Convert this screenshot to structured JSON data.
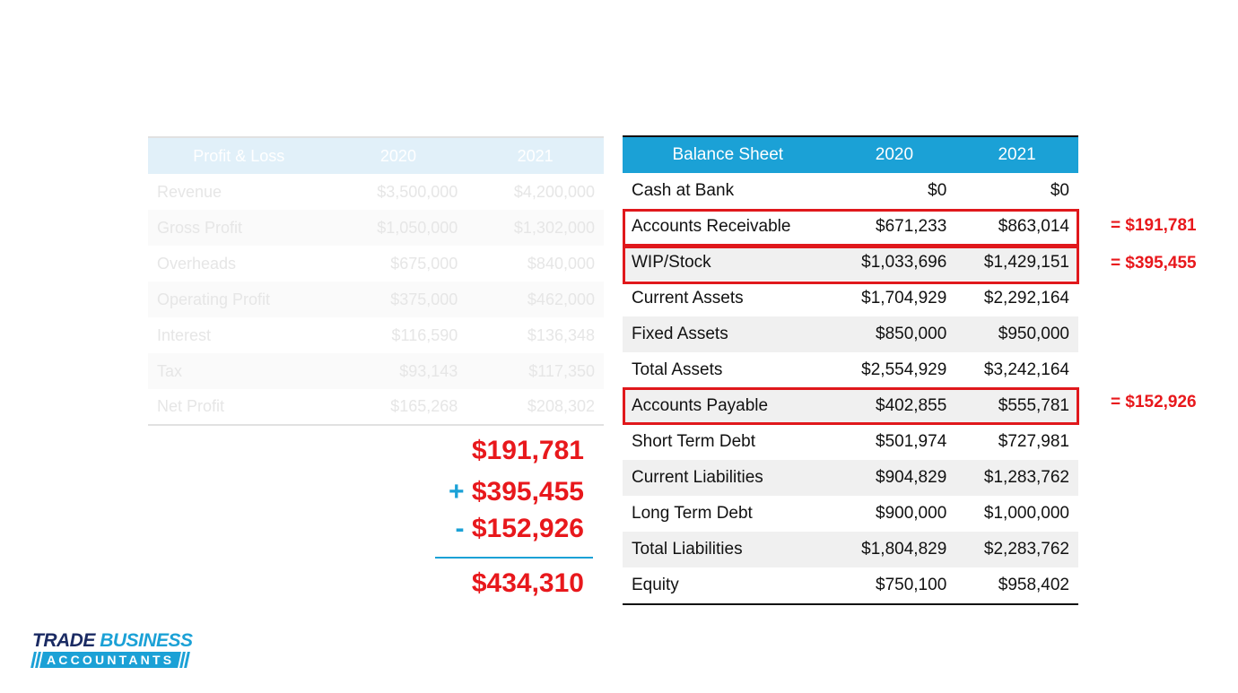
{
  "profit_loss": {
    "header": [
      "Profit & Loss",
      "2020",
      "2021"
    ],
    "rows": [
      [
        "Revenue",
        "$3,500,000",
        "$4,200,000"
      ],
      [
        "Gross Profit",
        "$1,050,000",
        "$1,302,000"
      ],
      [
        "Overheads",
        "$675,000",
        "$840,000"
      ],
      [
        "Operating Profit",
        "$375,000",
        "$462,000"
      ],
      [
        "Interest",
        "$116,590",
        "$136,348"
      ],
      [
        "Tax",
        "$93,143",
        "$117,350"
      ],
      [
        "Net Profit",
        "$165,268",
        "$208,302"
      ]
    ]
  },
  "balance_sheet": {
    "header": [
      "Balance Sheet",
      "2020",
      "2021"
    ],
    "rows": [
      [
        "Cash at Bank",
        "$0",
        "$0"
      ],
      [
        "Accounts Receivable",
        "$671,233",
        "$863,014"
      ],
      [
        "WIP/Stock",
        "$1,033,696",
        "$1,429,151"
      ],
      [
        "Current Assets",
        "$1,704,929",
        "$2,292,164"
      ],
      [
        "Fixed Assets",
        "$850,000",
        "$950,000"
      ],
      [
        "Total Assets",
        "$2,554,929",
        "$3,242,164"
      ],
      [
        "Accounts Payable",
        "$402,855",
        "$555,781"
      ],
      [
        "Short Term Debt",
        "$501,974",
        "$727,981"
      ],
      [
        "Current Liabilities",
        "$904,829",
        "$1,283,762"
      ],
      [
        "Long Term Debt",
        "$900,000",
        "$1,000,000"
      ],
      [
        "Total Liabilities",
        "$1,804,829",
        "$2,283,762"
      ],
      [
        "Equity",
        "$750,100",
        "$958,402"
      ]
    ]
  },
  "differences": {
    "receivable": "= $191,781",
    "stock": "= $395,455",
    "payable": "= $152,926"
  },
  "summation": {
    "line1": "$191,781",
    "op2": "+",
    "line2": "$395,455",
    "op3": "-",
    "line3": "$152,926",
    "total": "$434,310"
  },
  "logo": {
    "word1": "TRADE",
    "word2": "BUSINESS",
    "band": "ACCOUNTANTS"
  },
  "colors": {
    "accent_blue": "#1ba1d6",
    "highlight_red": "#e0181c",
    "logo_navy": "#1b2b63"
  }
}
